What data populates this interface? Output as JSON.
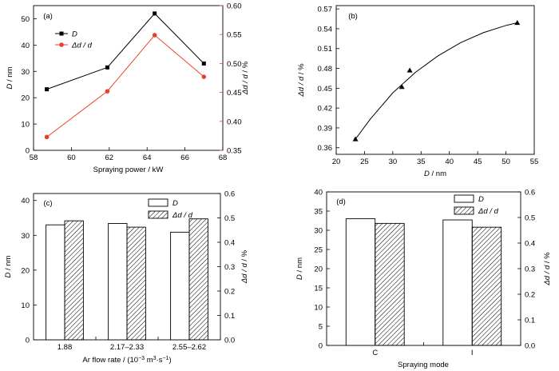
{
  "colors": {
    "black": "#000000",
    "red": "#e8412a",
    "white": "#ffffff"
  },
  "chart_data": [
    {
      "panel": "(a)",
      "type": "line",
      "xlabel": "Spraying power / kW",
      "ylabel_left": "D / nm",
      "ylabel_right": "Δd / d / %",
      "xlim": [
        58,
        68
      ],
      "ylim_left": [
        0,
        55
      ],
      "ylim_right": [
        0.35,
        0.6
      ],
      "x_ticks": [
        "58",
        "60",
        "62",
        "64",
        "66",
        "68"
      ],
      "y_left_ticks": [
        "0",
        "10",
        "20",
        "30",
        "40",
        "50"
      ],
      "y_right_ticks": [
        "0.35",
        "0.40",
        "0.45",
        "0.50",
        "0.55",
        "0.60"
      ],
      "series": [
        {
          "name": "D",
          "axis": "left",
          "color": "#000000",
          "marker": "square",
          "x": [
            58.7,
            61.9,
            64.4,
            67.0
          ],
          "y": [
            23.2,
            31.5,
            52.0,
            33.0
          ]
        },
        {
          "name": "Δd / d",
          "axis": "right",
          "color": "#e8412a",
          "marker": "circle",
          "x": [
            58.7,
            61.9,
            64.4,
            67.0
          ],
          "y": [
            0.373,
            0.452,
            0.549,
            0.477
          ]
        }
      ],
      "legend": "top-left"
    },
    {
      "panel": "(b)",
      "type": "scatter",
      "xlabel": "D / nm",
      "ylabel": "Δd / d / %",
      "xlim": [
        20,
        55
      ],
      "ylim": [
        0.35,
        0.575
      ],
      "x_ticks": [
        "20",
        "25",
        "30",
        "35",
        "40",
        "45",
        "50",
        "55"
      ],
      "y_ticks": [
        "0.36",
        "0.39",
        "0.42",
        "0.45",
        "0.48",
        "0.51",
        "0.54",
        "0.57"
      ],
      "points": {
        "x": [
          23.4,
          31.6,
          33.0,
          52.0
        ],
        "y": [
          0.373,
          0.452,
          0.477,
          0.549
        ]
      },
      "fit_curve": {
        "x": [
          23.4,
          26,
          30,
          34,
          38,
          42,
          46,
          50,
          52
        ],
        "y": [
          0.373,
          0.403,
          0.443,
          0.474,
          0.499,
          0.519,
          0.534,
          0.545,
          0.549
        ]
      },
      "marker": "triangle"
    },
    {
      "panel": "(c)",
      "type": "bar",
      "xlabel": "Ar flow rate / (10",
      "xlabel_exp": "−3",
      "xlabel_mid": " m",
      "xlabel_exp2": "3",
      "xlabel_mid2": "·s",
      "xlabel_exp3": "−1",
      "xlabel_end": ")",
      "ylabel_left": "D / nm",
      "ylabel_right": "Δd / d / %",
      "categories": [
        "1.88",
        "2.17–2.33",
        "2.55–2.62"
      ],
      "ylim_left": [
        0,
        42
      ],
      "ylim_right": [
        0,
        0.6
      ],
      "y_left_ticks": [
        "0",
        "10",
        "20",
        "30",
        "40"
      ],
      "y_right_ticks": [
        "0.0",
        "0.1",
        "0.2",
        "0.3",
        "0.4",
        "0.5",
        "0.6"
      ],
      "series": [
        {
          "name": "D",
          "axis": "left",
          "pattern": "open",
          "values": [
            33.0,
            33.4,
            30.9
          ]
        },
        {
          "name": "Δd / d",
          "axis": "right",
          "pattern": "hatched",
          "values": [
            0.488,
            0.462,
            0.496
          ]
        }
      ],
      "legend": "top-right"
    },
    {
      "panel": "(d)",
      "type": "bar",
      "xlabel": "Spraying mode",
      "ylabel_left": "D / nm",
      "ylabel_right": "Δd / d / %",
      "categories": [
        "C",
        "I"
      ],
      "ylim_left": [
        0,
        40
      ],
      "ylim_right": [
        0,
        0.6
      ],
      "y_left_ticks": [
        "0",
        "5",
        "10",
        "15",
        "20",
        "25",
        "30",
        "35",
        "40"
      ],
      "y_right_ticks": [
        "0.0",
        "0.1",
        "0.2",
        "0.3",
        "0.4",
        "0.5",
        "0.6"
      ],
      "series": [
        {
          "name": "D",
          "axis": "left",
          "pattern": "open",
          "values": [
            33.0,
            32.7
          ]
        },
        {
          "name": "Δd / d",
          "axis": "right",
          "pattern": "hatched",
          "values": [
            0.477,
            0.462
          ]
        }
      ],
      "legend": "top-right"
    }
  ]
}
